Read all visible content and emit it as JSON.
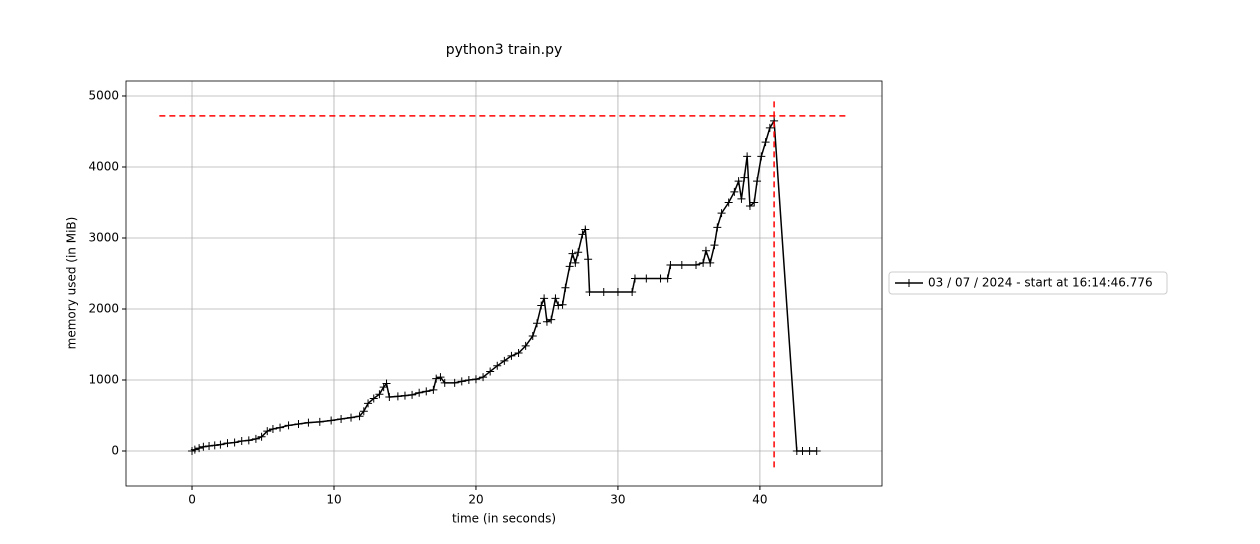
{
  "chart_data": {
    "type": "line",
    "title": "python3 train.py",
    "x_label": "time (in seconds)",
    "y_label": "memory used (in MiB)",
    "series": [
      {
        "name": "03 / 07 / 2024 - start at 16:14:46.776",
        "color": "#000000",
        "x": [
          0,
          0.2,
          0.5,
          0.8,
          1.2,
          1.6,
          2.0,
          2.5,
          3.0,
          3.5,
          4.0,
          4.5,
          4.9,
          5.3,
          5.7,
          6.2,
          6.8,
          7.5,
          8.2,
          9.0,
          9.8,
          10.5,
          11.2,
          11.8,
          12.1,
          12.4,
          12.8,
          13.2,
          13.5,
          13.7,
          13.9,
          14.5,
          15.0,
          15.5,
          16.0,
          16.5,
          17.0,
          17.2,
          17.5,
          17.8,
          18.5,
          19.0,
          19.5,
          20.0,
          20.5,
          21.0,
          21.5,
          22.0,
          22.5,
          23.0,
          23.5,
          24.0,
          24.3,
          24.6,
          24.8,
          25.0,
          25.3,
          25.6,
          25.8,
          26.1,
          26.3,
          26.6,
          26.8,
          27.0,
          27.2,
          27.5,
          27.7,
          27.9,
          28.0,
          29.0,
          30.0,
          31.0,
          31.2,
          32.0,
          33.0,
          33.5,
          33.7,
          34.5,
          35.5,
          36.0,
          36.2,
          36.5,
          36.8,
          37.0,
          37.3,
          37.8,
          38.2,
          38.5,
          38.7,
          38.9,
          39.1,
          39.3,
          39.6,
          39.8,
          40.1,
          40.4,
          40.7,
          41.0,
          42.6,
          43.0,
          43.5,
          44.0
        ],
        "values": [
          0,
          20,
          40,
          60,
          70,
          80,
          90,
          110,
          120,
          140,
          150,
          170,
          200,
          280,
          310,
          330,
          360,
          380,
          400,
          410,
          430,
          450,
          470,
          490,
          560,
          670,
          740,
          800,
          900,
          950,
          760,
          770,
          780,
          790,
          820,
          840,
          860,
          1020,
          1040,
          960,
          960,
          980,
          1000,
          1010,
          1040,
          1120,
          1200,
          1270,
          1340,
          1380,
          1480,
          1620,
          1800,
          2050,
          2150,
          1820,
          1850,
          2150,
          2050,
          2060,
          2300,
          2600,
          2780,
          2650,
          2800,
          3050,
          3120,
          2700,
          2240,
          2240,
          2240,
          2240,
          2430,
          2430,
          2430,
          2430,
          2620,
          2620,
          2620,
          2650,
          2820,
          2650,
          2900,
          3150,
          3350,
          3500,
          3650,
          3800,
          3550,
          3850,
          4150,
          3450,
          3500,
          3800,
          4150,
          4350,
          4550,
          4650,
          0,
          0,
          0,
          0
        ]
      }
    ],
    "hline": {
      "y": 4720,
      "xmin": -2.3,
      "xmax": 46.3,
      "color": "#ff0000"
    },
    "vline": {
      "x": 41.0,
      "ymin": -230,
      "ymax": 4950,
      "color": "#ff0000"
    },
    "xlim": [
      -4.65,
      48.6
    ],
    "ylim": [
      -493,
      5211
    ],
    "xticks": [
      0,
      10,
      20,
      30,
      40
    ],
    "yticks": [
      0,
      1000,
      2000,
      3000,
      4000,
      5000
    ],
    "grid": true,
    "legend": "right"
  }
}
